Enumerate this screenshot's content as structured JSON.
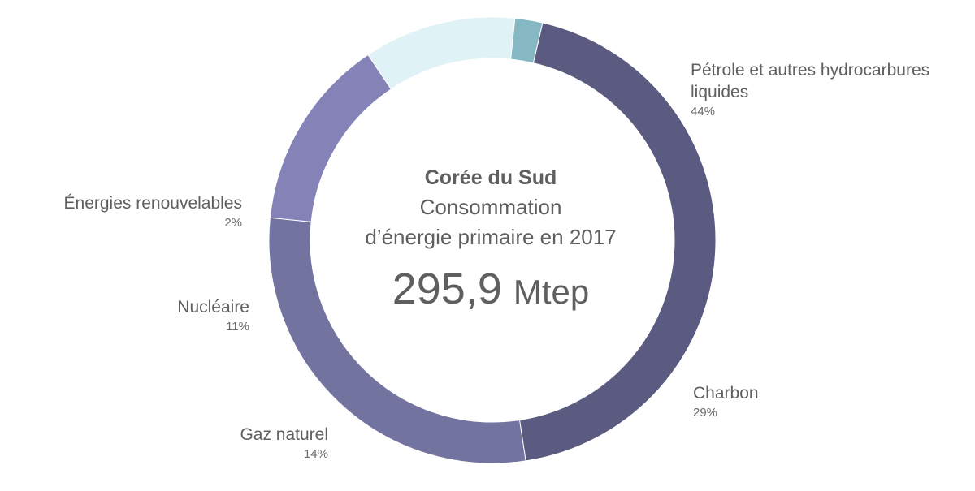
{
  "chart_data": {
    "type": "pie",
    "title": "Corée du Sud",
    "subtitle_lines": [
      "Consommation",
      "d’énergie primaire en 2017"
    ],
    "total": "295,9",
    "total_unit": "Mtep",
    "slices": [
      {
        "name_lines": [
          "Pétrole et autres hydrocarbures",
          "liquides"
        ],
        "value": 44,
        "label": "44%",
        "color": "#5b5a80"
      },
      {
        "name_lines": [
          "Charbon"
        ],
        "value": 29,
        "label": "29%",
        "color": "#73739f"
      },
      {
        "name_lines": [
          "Gaz naturel"
        ],
        "value": 14,
        "label": "14%",
        "color": "#8582b8"
      },
      {
        "name_lines": [
          "Nucléaire"
        ],
        "value": 11,
        "label": "11%",
        "color": "#dff2f5"
      },
      {
        "name_lines": [
          "Énergies renouvelables"
        ],
        "value": 2,
        "label": "2%",
        "color": "#85b8c3"
      }
    ]
  }
}
